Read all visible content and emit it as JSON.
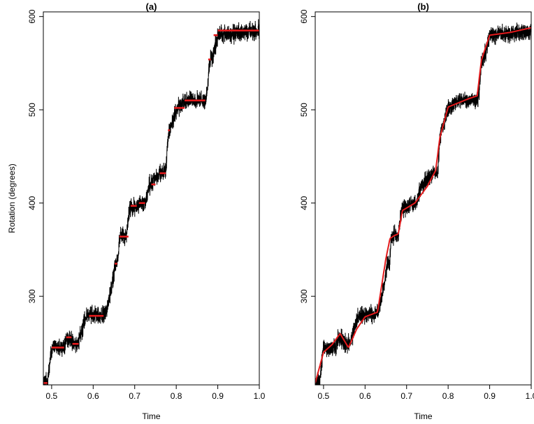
{
  "chart_data": [
    {
      "type": "line",
      "title": "(a)",
      "xlabel": "Time",
      "ylabel": "Rotation (degrees)",
      "xlim": [
        0.48,
        1.0
      ],
      "ylim": [
        205,
        605
      ],
      "x_ticks": [
        "0.5",
        "0.6",
        "0.7",
        "0.8",
        "0.9",
        "1.0"
      ],
      "y_ticks": [
        "300",
        "400",
        "500",
        "600"
      ],
      "grid": false,
      "legend": "none",
      "series": [
        {
          "color": "#000000",
          "style": "noisy-raw-trace",
          "x": [
            0.48,
            0.49,
            0.5,
            0.53,
            0.535,
            0.545,
            0.55,
            0.565,
            0.57,
            0.58,
            0.59,
            0.625,
            0.635,
            0.645,
            0.652,
            0.66,
            0.663,
            0.67,
            0.68,
            0.685,
            0.69,
            0.705,
            0.71,
            0.725,
            0.735,
            0.74,
            0.745,
            0.75,
            0.76,
            0.765,
            0.775,
            0.78,
            0.785,
            0.79,
            0.795,
            0.8,
            0.81,
            0.82,
            0.87,
            0.875,
            0.88,
            0.89,
            0.9,
            1.0
          ],
          "y": [
            207,
            207,
            245,
            245,
            255,
            255,
            250,
            250,
            260,
            275,
            280,
            280,
            290,
            310,
            332,
            340,
            362,
            365,
            365,
            385,
            395,
            395,
            400,
            400,
            420,
            420,
            425,
            425,
            430,
            432,
            432,
            470,
            480,
            485,
            495,
            500,
            505,
            510,
            510,
            520,
            550,
            560,
            580,
            585
          ]
        },
        {
          "color": "#e31a1c",
          "style": "piecewise-constant-fit",
          "segments": [
            {
              "x": [
                0.48,
                0.49
              ],
              "y": 207
            },
            {
              "x": [
                0.5,
                0.53
              ],
              "y": 245
            },
            {
              "x": [
                0.535,
                0.548
              ],
              "y": 256
            },
            {
              "x": [
                0.55,
                0.565
              ],
              "y": 249
            },
            {
              "x": [
                0.59,
                0.625
              ],
              "y": 279
            },
            {
              "x": [
                0.652,
                0.658
              ],
              "y": 335
            },
            {
              "x": [
                0.663,
                0.685
              ],
              "y": 364
            },
            {
              "x": [
                0.69,
                0.705
              ],
              "y": 397
            },
            {
              "x": [
                0.71,
                0.725
              ],
              "y": 400
            },
            {
              "x": [
                0.74,
                0.75
              ],
              "y": 420
            },
            {
              "x": [
                0.76,
                0.775
              ],
              "y": 432
            },
            {
              "x": [
                0.78,
                0.785
              ],
              "y": 478
            },
            {
              "x": [
                0.795,
                0.82
              ],
              "y": 502
            },
            {
              "x": [
                0.82,
                0.87
              ],
              "y": 510
            },
            {
              "x": [
                0.877,
                0.883
              ],
              "y": 554
            },
            {
              "x": [
                0.89,
                0.9
              ],
              "y": 580
            },
            {
              "x": [
                0.9,
                1.0
              ],
              "y": 585
            }
          ]
        }
      ]
    },
    {
      "type": "line",
      "title": "(b)",
      "xlabel": "Time",
      "ylabel": "",
      "xlim": [
        0.48,
        1.0
      ],
      "ylim": [
        205,
        605
      ],
      "x_ticks": [
        "0.5",
        "0.6",
        "0.7",
        "0.8",
        "0.9",
        "1.0"
      ],
      "y_ticks": [
        "300",
        "400",
        "500",
        "600"
      ],
      "grid": false,
      "legend": "none",
      "series": [
        {
          "color": "#000000",
          "style": "noisy-raw-trace",
          "x": [
            0.48,
            0.49,
            0.5,
            0.53,
            0.535,
            0.545,
            0.55,
            0.565,
            0.57,
            0.58,
            0.59,
            0.625,
            0.635,
            0.645,
            0.652,
            0.66,
            0.663,
            0.67,
            0.68,
            0.685,
            0.69,
            0.705,
            0.71,
            0.725,
            0.735,
            0.74,
            0.745,
            0.75,
            0.76,
            0.765,
            0.775,
            0.78,
            0.785,
            0.79,
            0.795,
            0.8,
            0.81,
            0.82,
            0.87,
            0.875,
            0.88,
            0.89,
            0.9,
            1.0
          ],
          "y": [
            207,
            207,
            245,
            245,
            255,
            255,
            250,
            250,
            260,
            275,
            280,
            280,
            290,
            310,
            332,
            340,
            362,
            365,
            365,
            385,
            395,
            395,
            400,
            400,
            420,
            420,
            425,
            425,
            430,
            432,
            432,
            470,
            480,
            485,
            495,
            500,
            505,
            510,
            510,
            520,
            550,
            560,
            580,
            585
          ]
        },
        {
          "color": "#e31a1c",
          "style": "smooth-fit",
          "x": [
            0.48,
            0.5,
            0.52,
            0.54,
            0.56,
            0.58,
            0.6,
            0.63,
            0.65,
            0.66,
            0.67,
            0.68,
            0.69,
            0.72,
            0.74,
            0.75,
            0.77,
            0.78,
            0.8,
            0.85,
            0.87,
            0.88,
            0.9,
            0.95,
            1.0
          ],
          "y": [
            207,
            240,
            248,
            260,
            245,
            265,
            278,
            283,
            340,
            362,
            365,
            367,
            392,
            400,
            412,
            418,
            435,
            470,
            503,
            512,
            515,
            553,
            580,
            583,
            588
          ]
        }
      ]
    }
  ]
}
